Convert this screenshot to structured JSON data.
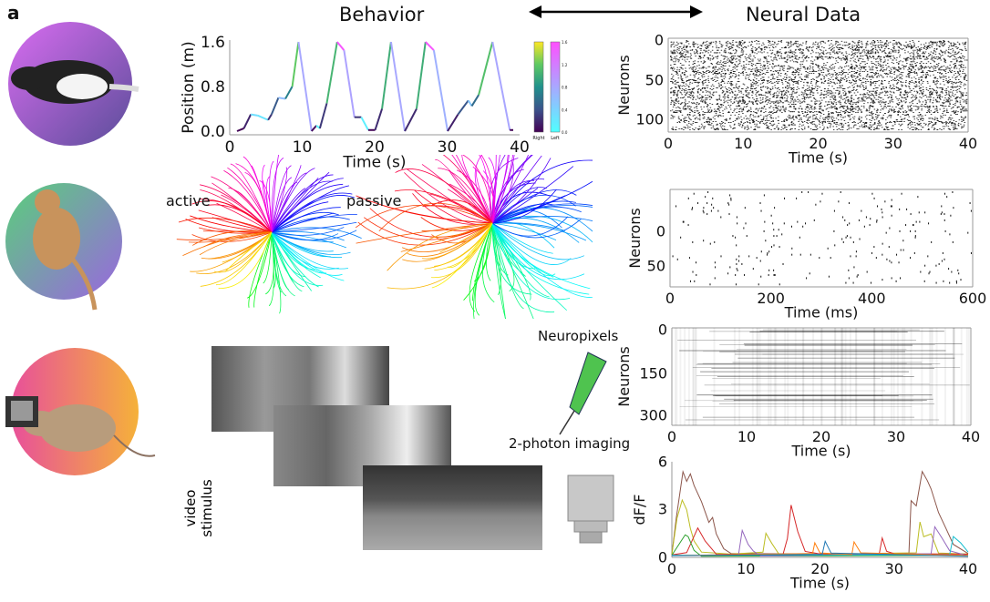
{
  "panel_label": "a",
  "headers": {
    "behavior": "Behavior",
    "neural": "Neural Data"
  },
  "reach_labels": {
    "active": "active",
    "passive": "passive"
  },
  "video_label": {
    "line1": "video",
    "line2": "stimulus"
  },
  "method_labels": {
    "neuropixels": "Neuropixels",
    "two_photon": "2-photon imaging"
  },
  "colors": {
    "circle_rat": [
      "#d86cf0",
      "#5b4e9a"
    ],
    "circle_monkey": [
      "#59d07a",
      "#9a66e0"
    ],
    "circle_mouse": [
      "#e8509a",
      "#f5b13a"
    ]
  },
  "chart_data": [
    {
      "type": "line",
      "id": "position",
      "xlabel": "Time (s)",
      "ylabel": "Position (m)",
      "xlim": [
        0,
        40
      ],
      "ylim": [
        0,
        1.6
      ],
      "xticks": [
        "0",
        "10",
        "20",
        "30",
        "40"
      ],
      "yticks": [
        "0.0",
        "0.8",
        "1.6"
      ],
      "x": [
        0,
        1,
        2,
        3,
        4.5,
        5,
        6,
        7,
        8,
        8.9,
        10.8,
        11.5,
        12,
        13,
        14.5,
        15.5,
        17,
        18,
        19,
        20,
        21,
        22.3,
        24.3,
        26,
        27.3,
        28.5,
        30.5,
        32,
        33.5,
        34,
        35,
        37,
        39.5,
        40
      ],
      "y": [
        0,
        0.05,
        0.3,
        0.28,
        0.2,
        0.3,
        0.6,
        0.58,
        0.8,
        1.6,
        0,
        0.1,
        0.05,
        0.5,
        1.6,
        1.45,
        0.25,
        0.25,
        0.02,
        0.02,
        0.4,
        1.6,
        0,
        0.4,
        1.6,
        1.45,
        0,
        0.3,
        0.55,
        0.45,
        0.65,
        1.6,
        0.02,
        0.02
      ],
      "colorbars": [
        {
          "label": "Right",
          "colormap": "viridis",
          "ticks": [
            "0.0",
            "0.4",
            "0.8",
            "1.2",
            "1.6"
          ]
        },
        {
          "label": "Left",
          "colormap": "cool",
          "ticks": [
            "0.0",
            "0.4",
            "0.8",
            "1.2",
            "1.6"
          ]
        }
      ]
    },
    {
      "type": "raster",
      "id": "raster-rat",
      "xlabel": "Time (s)",
      "ylabel": "Neurons",
      "xlim": [
        0,
        40
      ],
      "ylim": [
        0,
        120
      ],
      "xticks": [
        "0",
        "10",
        "20",
        "30",
        "40"
      ],
      "yticks": [
        "0",
        "50",
        "100"
      ]
    },
    {
      "type": "raster",
      "id": "raster-monkey",
      "xlabel": "Time (ms)",
      "ylabel": "Neurons",
      "xlim": [
        0,
        600
      ],
      "xticks": [
        "0",
        "200",
        "400",
        "600"
      ],
      "yticks": [
        "0",
        "50"
      ]
    },
    {
      "type": "heatmap",
      "id": "neuropixels-heatmap",
      "xlabel": "Time (s)",
      "ylabel": "Neurons",
      "xlim": [
        0,
        40
      ],
      "ylim": [
        0,
        330
      ],
      "xticks": [
        "0",
        "10",
        "20",
        "30",
        "40"
      ],
      "yticks": [
        "0",
        "150",
        "300"
      ]
    },
    {
      "type": "line",
      "id": "dff",
      "xlabel": "Time (s)",
      "ylabel": "dF/F",
      "xlim": [
        0,
        40
      ],
      "ylim": [
        0,
        6
      ],
      "xticks": [
        "0",
        "10",
        "20",
        "30",
        "40"
      ],
      "yticks": [
        "0",
        "3",
        "6"
      ],
      "series": [
        {
          "color": "#8c564b",
          "x": [
            0,
            0.6,
            1.5,
            2,
            2.5,
            3,
            4,
            5,
            5.5,
            6,
            7,
            8,
            32,
            32.3,
            33,
            33.8,
            34.5,
            35,
            36,
            37,
            38,
            40
          ],
          "y": [
            0.2,
            2.5,
            5.4,
            4.8,
            5.2,
            4.5,
            3.5,
            2.2,
            2.5,
            1.5,
            0.5,
            0.2,
            0.2,
            3.6,
            3.2,
            5.4,
            4.8,
            4.3,
            2.8,
            1.8,
            0.8,
            0.2
          ]
        },
        {
          "color": "#bcbd22",
          "x": [
            0,
            0.7,
            1.4,
            2,
            2.5,
            3,
            4,
            8,
            12.3,
            12.7,
            13.5,
            14.5,
            33,
            33.5,
            34,
            35,
            36,
            40
          ],
          "y": [
            0.2,
            2.5,
            3.6,
            3.0,
            1.8,
            1.0,
            0.3,
            0.2,
            0.3,
            1.5,
            0.9,
            0.2,
            0.3,
            2.2,
            1.3,
            1.5,
            0.3,
            0.2
          ]
        },
        {
          "color": "#d62728",
          "x": [
            0,
            2,
            3.5,
            4.5,
            6,
            15,
            15.6,
            16.1,
            17,
            18,
            20,
            28,
            28.4,
            29,
            30,
            40
          ],
          "y": [
            0.2,
            0.3,
            1.8,
            1.0,
            0.2,
            0.2,
            1.2,
            3.3,
            1.6,
            0.4,
            0.2,
            0.2,
            1.2,
            0.4,
            0.2,
            0.2
          ]
        },
        {
          "color": "#2ca02c",
          "x": [
            0,
            1.8,
            2.2,
            3,
            4,
            40
          ],
          "y": [
            0.1,
            1.4,
            1.3,
            0.4,
            0.1,
            0.1
          ]
        },
        {
          "color": "#9467bd",
          "x": [
            0,
            9,
            9.5,
            10.3,
            11,
            12,
            35,
            35.5,
            36.5,
            37.5,
            40
          ],
          "y": [
            0.1,
            0.2,
            1.7,
            0.8,
            0.4,
            0.1,
            0.2,
            1.9,
            1.2,
            0.4,
            0.1
          ]
        },
        {
          "color": "#17becf",
          "x": [
            0,
            37.5,
            38,
            39,
            40
          ],
          "y": [
            0.1,
            0.2,
            1.3,
            0.9,
            0.3
          ]
        },
        {
          "color": "#ff7f0e",
          "x": [
            0,
            19,
            19.3,
            20,
            24.3,
            24.6,
            25.5,
            40
          ],
          "y": [
            0.1,
            0.2,
            0.9,
            0.3,
            0.2,
            1.0,
            0.3,
            0.1
          ]
        },
        {
          "color": "#1f77b4",
          "x": [
            0,
            20.3,
            20.7,
            21.5,
            40
          ],
          "y": [
            0.1,
            0.2,
            1.0,
            0.3,
            0.1
          ]
        }
      ]
    }
  ]
}
